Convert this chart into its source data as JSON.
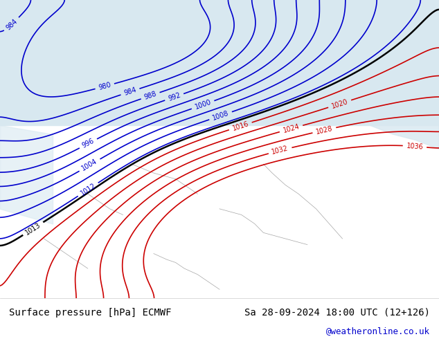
{
  "title_left": "Surface pressure [hPa] ECMWF",
  "title_right": "Sa 28-09-2024 18:00 UTC (12+126)",
  "credit": "@weatheronline.co.uk",
  "bg_map_color": "#c8e6c8",
  "sea_color": "#d8e8f0",
  "land_gray_color": "#b0b0b0",
  "border_color": "#808080",
  "blue_contour_color": "#0000cc",
  "red_contour_color": "#cc0000",
  "black_contour_color": "#000000",
  "text_color_left": "#000000",
  "text_color_right": "#000000",
  "credit_color": "#0000cc",
  "footer_bg": "#ffffff",
  "figsize": [
    6.34,
    4.9
  ],
  "dpi": 100,
  "blue_levels": [
    980,
    984,
    988,
    992,
    996,
    1000,
    1004,
    1008,
    1012
  ],
  "black_levels": [
    1013
  ],
  "red_levels": [
    1016,
    1020,
    1024,
    1028,
    1032,
    1036
  ],
  "contour_linewidth": 1.2,
  "black_linewidth": 1.8
}
